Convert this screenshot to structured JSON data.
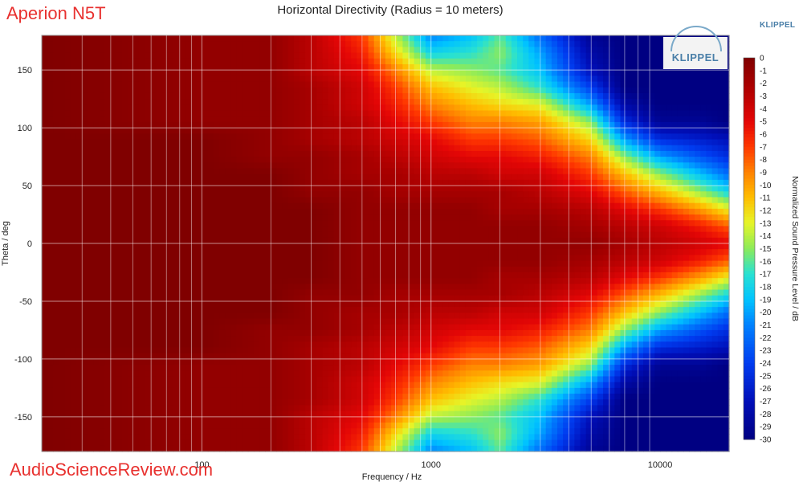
{
  "header": {
    "brand": "Aperion N5T",
    "title": "Horizontal Directivity (Radius = 10 meters)",
    "logo_text": "KLIPPEL",
    "watermark": "AudioScienceReview.com"
  },
  "chart_data": {
    "type": "heatmap",
    "title": "Horizontal Directivity (Radius = 10 meters)",
    "xlabel": "Frequency / Hz",
    "ylabel": "Theta / deg",
    "colorbar_label": "Normalized Sound Pressure Level / dB",
    "x_scale": "log",
    "xlim": [
      20,
      20000
    ],
    "ylim": [
      -180,
      180
    ],
    "x_ticks": [
      100,
      1000,
      10000
    ],
    "x_tick_labels": [
      "100",
      "1000",
      "10000"
    ],
    "y_ticks": [
      150,
      100,
      50,
      0,
      -50,
      -100,
      -150
    ],
    "y_tick_labels": [
      "150",
      "100",
      "50",
      "0",
      "-50",
      "-100",
      "-150"
    ],
    "colorbar_range": [
      -30,
      0
    ],
    "colorbar_ticks": [
      "0",
      "-1",
      "-2",
      "-3",
      "-4",
      "-5",
      "-6",
      "-7",
      "-8",
      "-9",
      "-10",
      "-11",
      "-12",
      "-13",
      "-14",
      "-15",
      "-16",
      "-17",
      "-18",
      "-19",
      "-20",
      "-21",
      "-22",
      "-23",
      "-24",
      "-25",
      "-26",
      "-27",
      "-28",
      "-29",
      "-30"
    ],
    "grid": true,
    "frequencies_hz": [
      20,
      100,
      200,
      300,
      500,
      700,
      1000,
      1500,
      2000,
      3000,
      5000,
      7000,
      10000,
      15000,
      20000
    ],
    "angles_deg": [
      0,
      15,
      30,
      45,
      60,
      75,
      90,
      105,
      120,
      135,
      150,
      165,
      180
    ],
    "db_rows": [
      [
        0,
        0,
        0,
        0,
        -1,
        -1,
        -1,
        -1,
        -1,
        -1,
        -1,
        -2,
        -3,
        -4,
        -5
      ],
      [
        0,
        0,
        0,
        0,
        -1,
        -1,
        -1,
        -1,
        -1,
        -1,
        -2,
        -3,
        -4,
        -6,
        -8
      ],
      [
        0,
        0,
        0,
        0,
        -1,
        -1,
        -1,
        -1,
        -2,
        -2,
        -3,
        -5,
        -7,
        -10,
        -13
      ],
      [
        0,
        0,
        0,
        -1,
        -1,
        -2,
        -2,
        -2,
        -2,
        -3,
        -5,
        -8,
        -11,
        -15,
        -18
      ],
      [
        0,
        0,
        0,
        -1,
        -2,
        -2,
        -3,
        -3,
        -4,
        -4,
        -7,
        -11,
        -15,
        -19,
        -22
      ],
      [
        0,
        0,
        -1,
        -1,
        -2,
        -3,
        -4,
        -5,
        -5,
        -6,
        -9,
        -15,
        -20,
        -23,
        -25
      ],
      [
        0,
        0,
        -1,
        -2,
        -3,
        -4,
        -5,
        -7,
        -7,
        -8,
        -12,
        -20,
        -25,
        -26,
        -27
      ],
      [
        0,
        -1,
        -1,
        -2,
        -3,
        -5,
        -7,
        -9,
        -9,
        -10,
        -15,
        -25,
        -29,
        -29,
        -30
      ],
      [
        0,
        -1,
        -1,
        -2,
        -4,
        -6,
        -9,
        -11,
        -12,
        -13,
        -20,
        -28,
        -30,
        -30,
        -30
      ],
      [
        0,
        -1,
        -1,
        -2,
        -4,
        -7,
        -11,
        -13,
        -14,
        -17,
        -24,
        -30,
        -30,
        -30,
        -30
      ],
      [
        0,
        -1,
        -1,
        -3,
        -5,
        -9,
        -14,
        -15,
        -16,
        -19,
        -27,
        -30,
        -30,
        -30,
        -30
      ],
      [
        0,
        -1,
        -1,
        -3,
        -6,
        -12,
        -18,
        -17,
        -15,
        -20,
        -28,
        -30,
        -30,
        -30,
        -30
      ],
      [
        0,
        -1,
        -1,
        -3,
        -7,
        -14,
        -21,
        -19,
        -16,
        -22,
        -29,
        -30,
        -30,
        -30,
        -30
      ]
    ]
  }
}
